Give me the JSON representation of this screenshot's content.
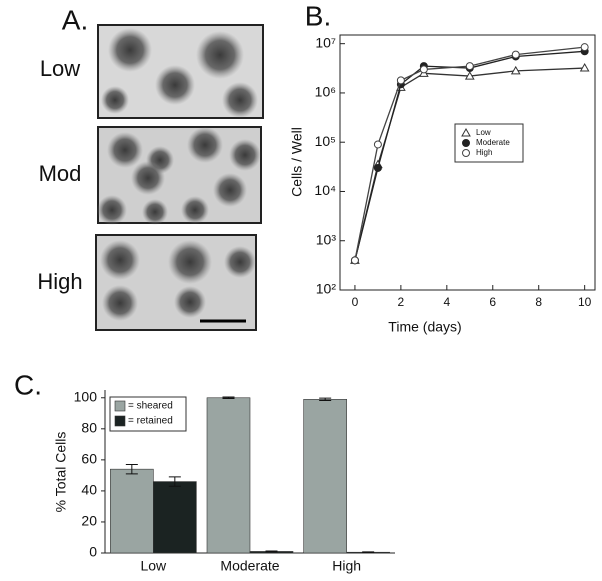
{
  "panel_a": {
    "label": "A.",
    "images": [
      "Low",
      "Mod",
      "High"
    ]
  },
  "chart_data": [
    {
      "type": "line",
      "panel_label": "B.",
      "x_label": "Time (days)",
      "y_label": "Cells / Well",
      "x": [
        0,
        1,
        2,
        3,
        5,
        7,
        10
      ],
      "series": [
        {
          "name": "Low",
          "color": "#333333",
          "marker": "triangle",
          "values": [
            400,
            35000,
            1300000,
            2500000,
            2200000,
            2800000,
            3200000
          ]
        },
        {
          "name": "Moderate",
          "color": "#222222",
          "marker": "filled-circle",
          "values": [
            400,
            30000,
            1500000,
            3500000,
            3200000,
            5500000,
            7000000
          ]
        },
        {
          "name": "High",
          "color": "#444444",
          "marker": "open-circle",
          "values": [
            400,
            90000,
            1800000,
            3000000,
            3500000,
            6000000,
            8500000
          ]
        }
      ],
      "xlim": [
        -0.65,
        10.45
      ],
      "xticks": [
        0,
        2,
        4,
        6,
        8,
        10
      ],
      "ylim": [
        100,
        15000000
      ],
      "log_y": true,
      "yticks": [
        {
          "value": 100,
          "label": "10²"
        },
        {
          "value": 1000,
          "label": "10³"
        },
        {
          "value": 10000,
          "label": "10⁴"
        },
        {
          "value": 100000,
          "label": "10⁵"
        },
        {
          "value": 1000000,
          "label": "10⁶"
        },
        {
          "value": 10000000,
          "label": "10⁷"
        }
      ]
    },
    {
      "type": "bar",
      "panel_label": "C.",
      "y_label": "% Total Cells",
      "categories": [
        "Low",
        "Moderate",
        "High"
      ],
      "series": [
        {
          "name": "= sheared",
          "color": "#9aa5a2",
          "values": [
            54,
            100,
            99
          ],
          "errors": [
            3,
            0.5,
            0.8
          ]
        },
        {
          "name": "= retained",
          "color": "#1b2322",
          "values": [
            46,
            1,
            0.5
          ],
          "errors": [
            3,
            0.3,
            0.2
          ]
        }
      ],
      "ylim": [
        0,
        105
      ],
      "yticks": [
        0,
        20,
        40,
        60,
        80,
        100
      ]
    }
  ]
}
